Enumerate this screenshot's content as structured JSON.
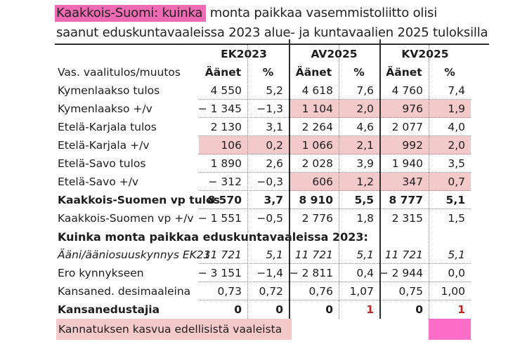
{
  "title": {
    "highlight": "Kaakkois-Suomi: kuinka",
    "rest_line1": " monta paikkaa vasemmistoliitto olisi",
    "line2": "saanut eduskuntavaaleissa 2023 alue- ja kuntavaalien 2025 tuloksilla"
  },
  "colors": {
    "title_highlight": "#ee6bb4",
    "cell_highlight": "#f3c9c9",
    "seat_box": "#fb6dc6",
    "red_value": "#c4251e",
    "line": "#2e2e2e"
  },
  "table": {
    "corner_label": "Vas. vaalitulos/muutos",
    "group_headers": [
      "EK2023",
      "AV2025",
      "KV2025"
    ],
    "sub_headers": [
      "Äänet",
      "%",
      "Äänet",
      "%",
      "Äänet",
      "%"
    ],
    "rows": [
      {
        "label": "Kymenlaakso tulos",
        "values": [
          "4 550",
          "5,2",
          "4 618",
          "7,6",
          "4 760",
          "7,4"
        ],
        "dotted": true
      },
      {
        "label": "Kymenlaakso +/v",
        "values": [
          "− 1 345",
          "−1,3",
          "1 104",
          "2,0",
          "976",
          "1,9"
        ],
        "dotted": true,
        "pink": [
          2,
          3,
          4,
          5
        ]
      },
      {
        "label": "Etelä-Karjala tulos",
        "values": [
          "2 130",
          "3,1",
          "2 264",
          "4,6",
          "2 077",
          "4,0"
        ],
        "dotted": true
      },
      {
        "label": "Etelä-Karjala +/v",
        "values": [
          "106",
          "0,2",
          "1 066",
          "2,1",
          "992",
          "2,0"
        ],
        "dotted": true,
        "pink": [
          0,
          1,
          2,
          3,
          4,
          5
        ]
      },
      {
        "label": "Etelä-Savo tulos",
        "values": [
          "1 890",
          "2,6",
          "2 028",
          "3,9",
          "1 940",
          "3,5"
        ],
        "dotted": true
      },
      {
        "label": "Etelä-Savo +/v",
        "values": [
          "− 312",
          "−0,3",
          "606",
          "1,2",
          "347",
          "0,7"
        ],
        "dotted": true,
        "pink": [
          2,
          3,
          4,
          5
        ]
      },
      {
        "label": "Kaakkois-Suomen vp tulos",
        "values": [
          "8 570",
          "3,7",
          "8 910",
          "5,5",
          "8 777",
          "5,1"
        ],
        "dotted": true,
        "style": "bold"
      },
      {
        "label": "Kaakkois-Suomen vp  +/v",
        "values": [
          "− 1 551",
          "−0,5",
          "2 776",
          "1,8",
          "2 315",
          "1,5"
        ]
      },
      {
        "label": "Kuinka monta paikkaa eduskuntavaaleissa 2023:",
        "style": "section"
      },
      {
        "label": "Ääni/ääniosuuskynnys EK23",
        "values": [
          "11 721",
          "5,1",
          "11 721",
          "5,1",
          "11 721",
          "5,1"
        ],
        "dotted": true,
        "style": "italic"
      },
      {
        "label": "Ero kynnykseen",
        "values": [
          "− 3 151",
          "−1,4",
          "− 2 811",
          "0,4",
          "− 2 944",
          "0,0"
        ],
        "dotted": true
      },
      {
        "label": "Kansaned. desimaaleina",
        "values": [
          "0,73",
          "0,72",
          "0,76",
          "1,07",
          "0,75",
          "1,00"
        ],
        "dotted": true
      },
      {
        "label": "Kansanedustajia",
        "values": [
          "0",
          "0",
          "0",
          "1",
          "0",
          "1"
        ],
        "style": "bold",
        "red": [
          3,
          5
        ]
      }
    ],
    "legend": {
      "label": "Kannatuksen kasvua edellisistä vaaleista"
    }
  }
}
